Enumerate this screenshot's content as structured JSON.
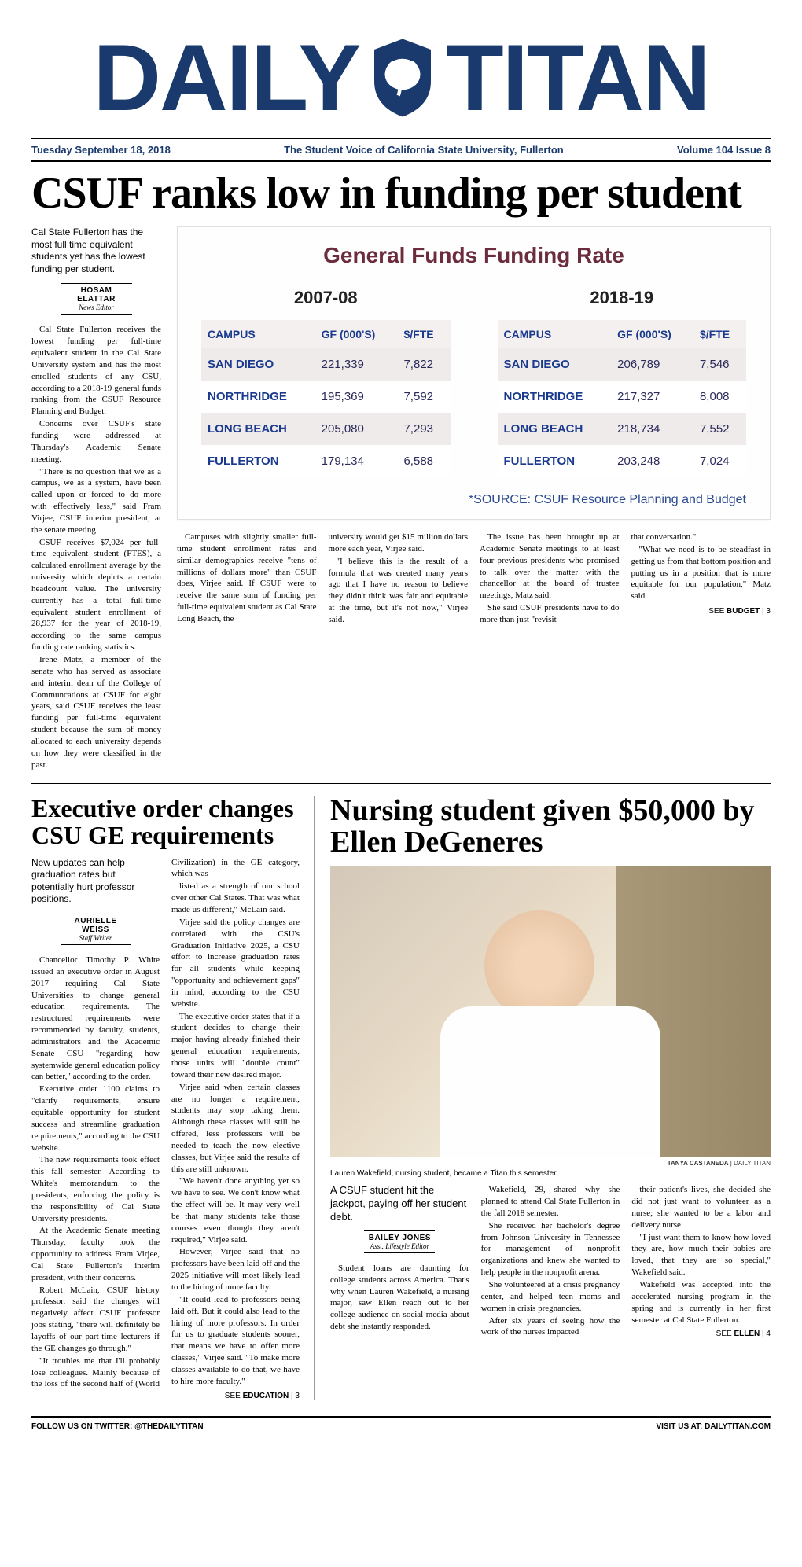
{
  "masthead": {
    "word1": "DAILY",
    "word2": "TITAN",
    "logo_bg": "#1a3a6e",
    "logo_fg": "#ffffff"
  },
  "dateline": {
    "date": "Tuesday September 18, 2018",
    "tagline": "The Student Voice of California State University, Fullerton",
    "issue": "Volume 104 Issue 8"
  },
  "lead": {
    "headline": "CSUF ranks low in funding per student",
    "deck": "Cal State Fullerton has the most full time equivalent students yet has the lowest funding per student.",
    "byline_name": "HOSAM ELATTAR",
    "byline_role": "News Editor",
    "paras_left": [
      "Cal State Fullerton receives the lowest funding per full-time equivalent student in the Cal State University system and has the most enrolled students of any CSU, according to a 2018-19 general funds ranking from the CSUF Resource Planning and Budget.",
      "Concerns over CSUF's state funding were addressed at Thursday's Academic Senate meeting.",
      "\"There is no question that we as a campus, we as a system, have been called upon or forced to do more with effectively less,\" said Fram Virjee, CSUF interim president, at the senate meeting.",
      "CSUF receives $7,024 per full-time equivalent student (FTES), a calculated enrollment average by the university which depicts a certain headcount value. The university currently has a total full-time equivalent student enrollment of 28,937 for the year of 2018-19, according to the same campus funding rate ranking statistics.",
      "Irene Matz, a member of the senate who has served as associate and interim dean of the College of Communcations at CSUF for eight years, said CSUF receives the least funding per full-time equivalent student because the sum of money allocated to each university depends on how they were classified in the past."
    ],
    "cont": [
      "Campuses with slightly smaller full-time student enrollment rates and similar demographics receive \"tens of millions of dollars more\" than CSUF does, Virjee said. If CSUF were to receive the same sum of funding per full-time equivalent student as Cal State Long Beach, the",
      "university would get $15 million dollars more each year, Virjee said.",
      "\"I believe this is the result of a formula that was created many years ago that I have no reason to believe they didn't think was fair and equitable at the time, but it's not now,\" Virjee said.",
      "The issue has been brought up at Academic Senate meetings to at least four previous presidents who promised to talk over the matter with the chancellor at the board of trustee meetings, Matz said.",
      "She said CSUF presidents have to do more than just \"revisit",
      "that conversation.\"",
      "\"What we need is to be steadfast in getting us from that bottom position and putting us in a position that is more equitable for our population,\" Matz said."
    ],
    "jump_see": "SEE ",
    "jump_label": "BUDGET",
    "jump_page": " | 3"
  },
  "chart": {
    "title": "General Funds Funding Rate",
    "source": "*SOURCE: CSUF Resource Planning and Budget",
    "headers": [
      "CAMPUS",
      "GF (000'S)",
      "$/FTE"
    ],
    "title_color": "#6b2c3e",
    "header_color": "#1a3a8e",
    "cell_color": "#2a2a5a",
    "campus_color": "#1a3a8e",
    "row_alt_bg": "#f0ebeb",
    "left": {
      "year": "2007-08",
      "rows": [
        [
          "SAN DIEGO",
          "221,339",
          "7,822"
        ],
        [
          "NORTHRIDGE",
          "195,369",
          "7,592"
        ],
        [
          "LONG BEACH",
          "205,080",
          "7,293"
        ],
        [
          "FULLERTON",
          "179,134",
          "6,588"
        ]
      ]
    },
    "right": {
      "year": "2018-19",
      "rows": [
        [
          "SAN DIEGO",
          "206,789",
          "7,546"
        ],
        [
          "NORTHRIDGE",
          "217,327",
          "8,008"
        ],
        [
          "LONG BEACH",
          "218,734",
          "7,552"
        ],
        [
          "FULLERTON",
          "203,248",
          "7,024"
        ]
      ]
    }
  },
  "story2": {
    "headline": "Executive order changes CSU GE requirements",
    "deck": "New updates can help graduation rates but potentially hurt professor positions.",
    "byline_name": "AURIELLE WEISS",
    "byline_role": "Staff Writer",
    "paras": [
      "Chancellor Timothy P. White issued an executive order in August 2017 requiring Cal State Universities to change general education requirements. The restructured requirements were recommended by faculty, students, administrators and the Academic Senate CSU \"regarding how systemwide general education policy can better,\" according to the order.",
      "Executive order 1100 claims to \"clarify requirements, ensure equitable opportunity for student success and streamline graduation requirements,\" according to the CSU website.",
      "The new requirements took effect this fall semester. According to White's memorandum to the presidents, enforcing the policy is the responsibility of Cal State University presidents.",
      "At the Academic Senate meeting Thursday, faculty took the opportunity to address Fram Virjee, Cal State Fullerton's interim president, with their concerns.",
      "Robert McLain, CSUF history professor, said the changes will negatively affect CSUF professor jobs stating, \"there will definitely be layoffs of our part-time lecturers if the GE changes go through.\"",
      "\"It troubles me that I'll probably lose colleagues. Mainly because of the loss of the second half of (World Civilization) in the GE category, which was",
      "listed as a strength of our school over other Cal States. That was what made us different,\" McLain said.",
      "Virjee said the policy changes are correlated with the CSU's Graduation Initiative 2025, a CSU effort to increase graduation rates for all students while keeping \"opportunity and achievement gaps\" in mind, according to the CSU website.",
      "The executive order states that if a student decides to change their major having already finished their general education requirements, those units will \"double count\" toward their new desired major.",
      "Virjee said when certain classes are no longer a requirement, students may stop taking them. Although these classes will still be offered, less professors will be needed to teach the now elective classes, but Virjee said the results of this are still unknown.",
      "\"We haven't done anything yet so we have to see. We don't know what the effect will be. It may very well be that many students take those courses even though they aren't required,\" Virjee said.",
      "However, Virjee said that no professors have been laid off and the 2025 initiative will most likely lead to the hiring of more faculty.",
      "\"It could lead to professors being laid off. But it could also lead to the hiring of more professors. In order for us to graduate students sooner, that means we have to offer more classes,\" Virjee said. \"To make more classes available to do that, we have to hire more faculty.\""
    ],
    "jump_see": "SEE ",
    "jump_label": "EDUCATION",
    "jump_page": " | 3"
  },
  "story3": {
    "headline": "Nursing student given $50,000 by Ellen DeGeneres",
    "photo_credit_name": "TANYA CASTANEDA",
    "photo_credit_src": " | DAILY TITAN",
    "caption": "Lauren Wakefield, nursing student, became a Titan this semester.",
    "deck": "A CSUF student hit the jackpot, paying off her student debt.",
    "byline_name": "BAILEY JONES",
    "byline_role": "Asst. Lifestyle Editor",
    "paras": [
      "Student loans are daunting for college students across America. That's why when Lauren Wakefield, a nursing major, saw Ellen reach out to her college audience on social media about debt she instantly responded.",
      "Wakefield, 29, shared why she planned to attend Cal State Fullerton in the fall 2018 semester.",
      "She received her bachelor's degree from Johnson University in Tennessee for management of nonprofit organizations and knew she wanted to help people in the nonprofit arena.",
      "She volunteered at a crisis pregnancy center, and helped teen moms and women in crisis pregnancies.",
      "After six years of seeing how the work of the nurses impacted",
      "their patient's lives, she decided she did not just want to volunteer as a nurse; she wanted to be a labor and delivery nurse.",
      "\"I just want them to know how loved they are, how much their babies are loved, that they are so special,\" Wakefield said.",
      "Wakefield was accepted into the accelerated nursing program in the spring and is currently in her first semester at Cal State Fullerton."
    ],
    "jump_see": "SEE ",
    "jump_label": "ELLEN",
    "jump_page": " | 4"
  },
  "footer": {
    "left": "FOLLOW US ON TWITTER: @THEDAILYTITAN",
    "right": "VISIT US AT: DAILYTITAN.COM"
  }
}
